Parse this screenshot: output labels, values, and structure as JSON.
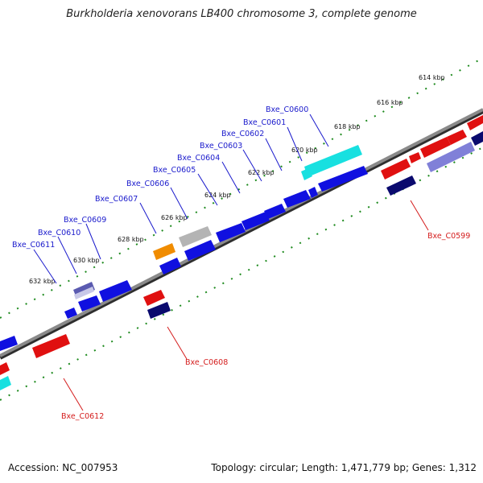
{
  "title": "Burkholderia xenovorans LB400 chromosome 3, complete genome",
  "footer": {
    "accession": "Accession: NC_007953",
    "summary": "Topology: circular; Length: 1,471,779 bp; Genes: 1,312"
  },
  "colors": {
    "backbone": "#6e6e6e",
    "tick_dots": "#1d8a1d",
    "label_forward": "#1a1acc",
    "label_reverse": "#d41c1c",
    "gene_blue": "#1010e0",
    "gene_navy": "#0a0a6e",
    "gene_red": "#e01010",
    "gene_cyan": "#18e0e0",
    "gene_orange": "#f08c00",
    "gene_grey": "#b4b4b4",
    "gene_lavender": "#8080d8"
  },
  "kbp_ticks": [
    "614 kbp",
    "616 kbp",
    "618 kbp",
    "620 kbp",
    "622 kbp",
    "624 kbp",
    "626 kbp",
    "628 kbp",
    "630 kbp",
    "632 kbp"
  ],
  "gene_labels_forward": [
    "Bxe_C0600",
    "Bxe_C0601",
    "Bxe_C0602",
    "Bxe_C0603",
    "Bxe_C0604",
    "Bxe_C0605",
    "Bxe_C0606",
    "Bxe_C0607",
    "Bxe_C0609",
    "Bxe_C0610",
    "Bxe_C0611"
  ],
  "gene_labels_reverse": [
    "Bxe_C0599",
    "Bxe_C0608",
    "Bxe_C0612"
  ]
}
